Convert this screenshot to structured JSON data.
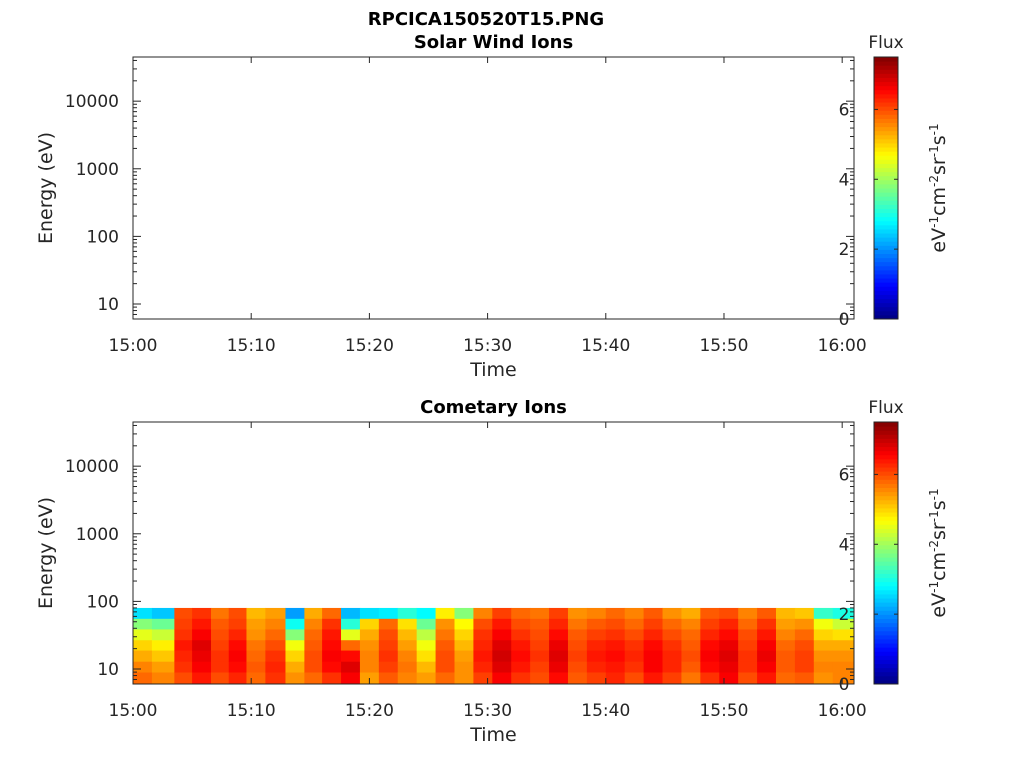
{
  "figure": {
    "title": "RPCICA150520T15.PNG"
  },
  "chart_data": [
    {
      "type": "heatmap",
      "title": "Solar Wind Ions",
      "xlabel": "Time",
      "ylabel": "Energy (eV)",
      "x_tick_labels": [
        "15:00",
        "15:10",
        "15:20",
        "15:30",
        "15:40",
        "15:50",
        "16:00"
      ],
      "x_tick_minutes": [
        0,
        10,
        20,
        30,
        40,
        50,
        60
      ],
      "xlim_minutes": [
        0,
        61
      ],
      "y_scale": "log",
      "ylim": [
        6,
        45000
      ],
      "y_tick_labels": [
        "10",
        "100",
        "1000",
        "10000"
      ],
      "y_tick_values": [
        10,
        100,
        1000,
        10000
      ],
      "colorbar": {
        "title": "Flux",
        "label": "eV-1cm-2sr-1s-1",
        "range": [
          0,
          7.5
        ],
        "tick_labels": [
          "0",
          "2",
          "4",
          "6"
        ],
        "tick_values": [
          0,
          2,
          4,
          6
        ],
        "colormap": "jet"
      },
      "columns": []
    },
    {
      "type": "heatmap",
      "title": "Cometary Ions",
      "xlabel": "Time",
      "ylabel": "Energy (eV)",
      "x_tick_labels": [
        "15:00",
        "15:10",
        "15:20",
        "15:30",
        "15:40",
        "15:50",
        "16:00"
      ],
      "x_tick_minutes": [
        0,
        10,
        20,
        30,
        40,
        50,
        60
      ],
      "xlim_minutes": [
        0,
        61
      ],
      "y_scale": "log",
      "ylim": [
        6,
        45000
      ],
      "y_tick_labels": [
        "10",
        "100",
        "1000",
        "10000"
      ],
      "y_tick_values": [
        10,
        100,
        1000,
        10000
      ],
      "colorbar": {
        "title": "Flux",
        "label": "eV-1cm-2sr-1s-1",
        "range": [
          0,
          7.5
        ],
        "tick_labels": [
          "0",
          "2",
          "4",
          "6"
        ],
        "tick_values": [
          0,
          2,
          4,
          6
        ],
        "colormap": "jet"
      },
      "energy_bin_edges": [
        6,
        9,
        13,
        19,
        27,
        39,
        56,
        80
      ],
      "columns": [
        {
          "t0": 0.0,
          "t1": 1.6,
          "flux": [
            5.8,
            5.6,
            5.3,
            5.0,
            4.5,
            3.8,
            2.6
          ]
        },
        {
          "t0": 1.6,
          "t1": 3.5,
          "flux": [
            5.6,
            5.4,
            5.1,
            4.8,
            4.3,
            3.6,
            2.4
          ]
        },
        {
          "t0": 3.5,
          "t1": 5.0,
          "flux": [
            6.0,
            6.2,
            6.3,
            6.4,
            6.2,
            6.1,
            6.0
          ]
        },
        {
          "t0": 5.0,
          "t1": 6.6,
          "flux": [
            6.4,
            6.6,
            6.7,
            6.8,
            6.6,
            6.4,
            6.2
          ]
        },
        {
          "t0": 6.6,
          "t1": 8.1,
          "flux": [
            6.0,
            6.2,
            6.2,
            6.1,
            6.0,
            5.9,
            5.7
          ]
        },
        {
          "t0": 8.1,
          "t1": 9.6,
          "flux": [
            6.3,
            6.5,
            6.6,
            6.5,
            6.3,
            6.1,
            6.0
          ]
        },
        {
          "t0": 9.6,
          "t1": 11.2,
          "flux": [
            5.8,
            5.9,
            5.8,
            5.7,
            5.5,
            5.4,
            5.2
          ]
        },
        {
          "t0": 11.2,
          "t1": 12.9,
          "flux": [
            6.2,
            6.3,
            6.2,
            6.0,
            5.8,
            5.6,
            5.4
          ]
        },
        {
          "t0": 12.9,
          "t1": 14.5,
          "flux": [
            5.5,
            5.3,
            5.0,
            4.6,
            3.8,
            2.9,
            2.1
          ]
        },
        {
          "t0": 14.5,
          "t1": 16.0,
          "flux": [
            5.8,
            6.0,
            6.0,
            5.9,
            5.8,
            5.6,
            5.3
          ]
        },
        {
          "t0": 16.0,
          "t1": 17.6,
          "flux": [
            6.2,
            6.5,
            6.6,
            6.5,
            6.4,
            6.2,
            5.8
          ]
        },
        {
          "t0": 17.6,
          "t1": 19.2,
          "flux": [
            6.6,
            6.8,
            6.5,
            5.8,
            4.5,
            3.1,
            2.3
          ]
        },
        {
          "t0": 19.2,
          "t1": 20.8,
          "flux": [
            5.4,
            5.6,
            5.6,
            5.5,
            5.3,
            5.0,
            2.6
          ]
        },
        {
          "t0": 20.8,
          "t1": 22.4,
          "flux": [
            5.9,
            6.1,
            6.2,
            6.1,
            6.0,
            5.8,
            2.7
          ]
        },
        {
          "t0": 22.4,
          "t1": 24.0,
          "flux": [
            5.6,
            5.7,
            5.6,
            5.4,
            5.2,
            4.9,
            3.1
          ]
        },
        {
          "t0": 24.0,
          "t1": 25.6,
          "flux": [
            5.4,
            5.2,
            4.9,
            4.6,
            4.2,
            3.6,
            2.8
          ]
        },
        {
          "t0": 25.6,
          "t1": 27.2,
          "flux": [
            5.8,
            6.0,
            6.0,
            5.9,
            5.7,
            5.5,
            4.8
          ]
        },
        {
          "t0": 27.2,
          "t1": 28.8,
          "flux": [
            5.5,
            5.5,
            5.4,
            5.2,
            5.0,
            4.7,
            3.8
          ]
        },
        {
          "t0": 28.8,
          "t1": 30.4,
          "flux": [
            6.1,
            6.3,
            6.4,
            6.3,
            6.2,
            6.0,
            5.6
          ]
        },
        {
          "t0": 30.4,
          "t1": 32.0,
          "flux": [
            6.6,
            6.8,
            6.9,
            6.8,
            6.6,
            6.4,
            6.1
          ]
        },
        {
          "t0": 32.0,
          "t1": 33.6,
          "flux": [
            6.2,
            6.4,
            6.5,
            6.4,
            6.2,
            6.0,
            5.8
          ]
        },
        {
          "t0": 33.6,
          "t1": 35.2,
          "flux": [
            6.0,
            6.1,
            6.2,
            6.1,
            6.0,
            5.9,
            5.7
          ]
        },
        {
          "t0": 35.2,
          "t1": 36.8,
          "flux": [
            6.5,
            6.7,
            6.8,
            6.7,
            6.5,
            6.3,
            6.1
          ]
        },
        {
          "t0": 36.8,
          "t1": 38.4,
          "flux": [
            5.9,
            6.0,
            6.1,
            6.0,
            5.9,
            5.7,
            5.5
          ]
        },
        {
          "t0": 38.4,
          "t1": 40.0,
          "flux": [
            6.1,
            6.3,
            6.4,
            6.3,
            6.1,
            5.9,
            5.6
          ]
        },
        {
          "t0": 40.0,
          "t1": 41.6,
          "flux": [
            6.3,
            6.4,
            6.5,
            6.4,
            6.2,
            6.0,
            5.8
          ]
        },
        {
          "t0": 41.6,
          "t1": 43.2,
          "flux": [
            6.0,
            6.2,
            6.3,
            6.2,
            6.0,
            5.8,
            5.6
          ]
        },
        {
          "t0": 43.2,
          "t1": 44.8,
          "flux": [
            6.4,
            6.6,
            6.6,
            6.5,
            6.3,
            6.1,
            5.9
          ]
        },
        {
          "t0": 44.8,
          "t1": 46.4,
          "flux": [
            6.1,
            6.3,
            6.3,
            6.2,
            6.0,
            5.8,
            5.5
          ]
        },
        {
          "t0": 46.4,
          "t1": 48.0,
          "flux": [
            5.7,
            5.9,
            6.0,
            5.9,
            5.8,
            5.6,
            5.3
          ]
        },
        {
          "t0": 48.0,
          "t1": 49.6,
          "flux": [
            6.2,
            6.5,
            6.6,
            6.5,
            6.3,
            6.1,
            5.9
          ]
        },
        {
          "t0": 49.6,
          "t1": 51.2,
          "flux": [
            6.6,
            6.7,
            6.8,
            6.7,
            6.5,
            6.3,
            6.0
          ]
        },
        {
          "t0": 51.2,
          "t1": 52.8,
          "flux": [
            6.0,
            6.2,
            6.2,
            6.1,
            6.0,
            5.8,
            5.6
          ]
        },
        {
          "t0": 52.8,
          "t1": 54.4,
          "flux": [
            6.4,
            6.6,
            6.7,
            6.6,
            6.4,
            6.2,
            5.9
          ]
        },
        {
          "t0": 54.4,
          "t1": 56.0,
          "flux": [
            5.8,
            5.9,
            5.9,
            5.8,
            5.6,
            5.4,
            5.2
          ]
        },
        {
          "t0": 56.0,
          "t1": 57.6,
          "flux": [
            5.9,
            6.1,
            6.1,
            6.0,
            5.8,
            5.5,
            5.1
          ]
        },
        {
          "t0": 57.6,
          "t1": 59.2,
          "flux": [
            5.5,
            5.6,
            5.5,
            5.3,
            5.0,
            4.6,
            3.2
          ]
        },
        {
          "t0": 59.2,
          "t1": 61.0,
          "flux": [
            5.6,
            5.6,
            5.5,
            5.3,
            4.9,
            4.3,
            3.0
          ]
        }
      ]
    }
  ]
}
